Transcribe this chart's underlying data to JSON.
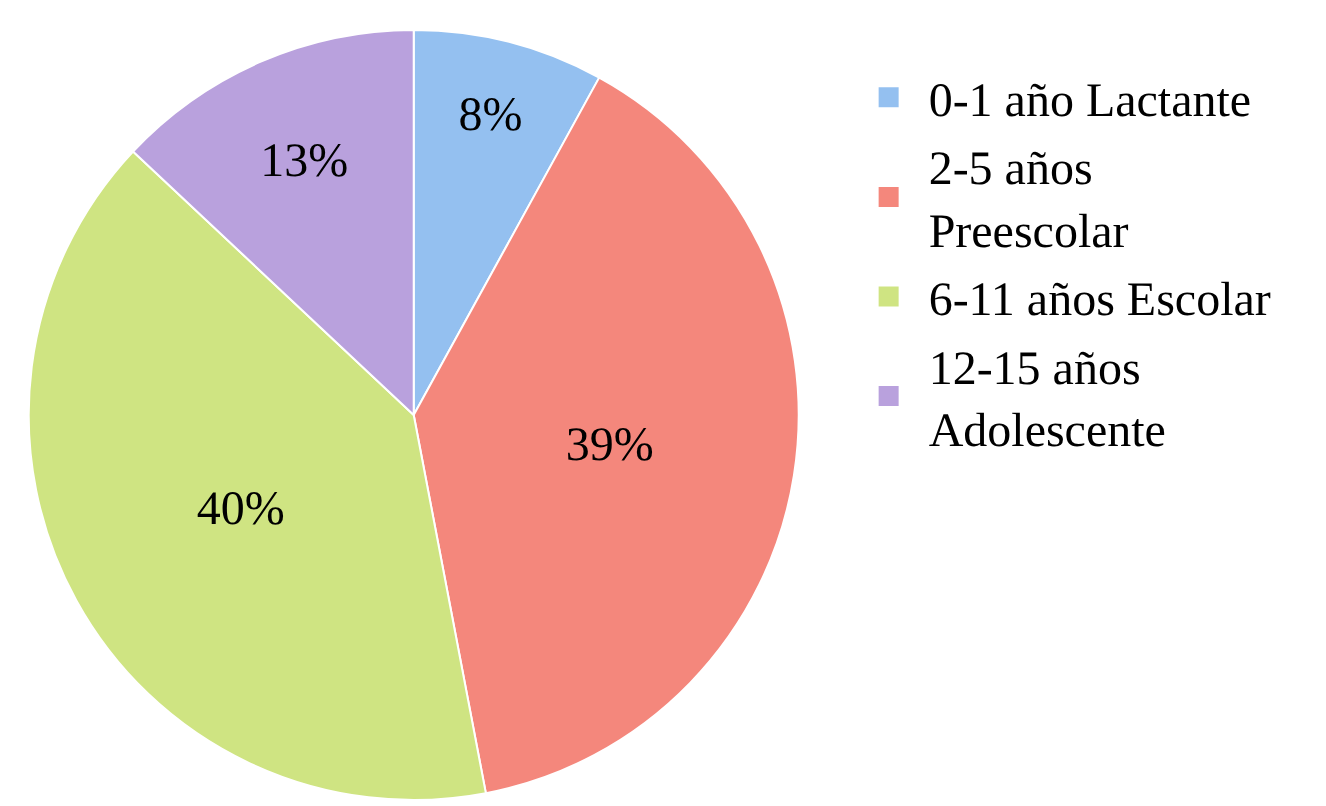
{
  "chart_data": {
    "type": "pie",
    "categories": [
      "0-1 año Lactante",
      "2-5 años Preescolar",
      "6-11 años Escolar",
      "12-15 años Adolescente"
    ],
    "values": [
      8,
      39,
      40,
      13
    ],
    "colors": [
      "#94c0f0",
      "#f4877c",
      "#cfe482",
      "#b9a1dd"
    ],
    "value_labels": [
      "8%",
      "39%",
      "40%",
      "13%"
    ],
    "legend": "right"
  }
}
